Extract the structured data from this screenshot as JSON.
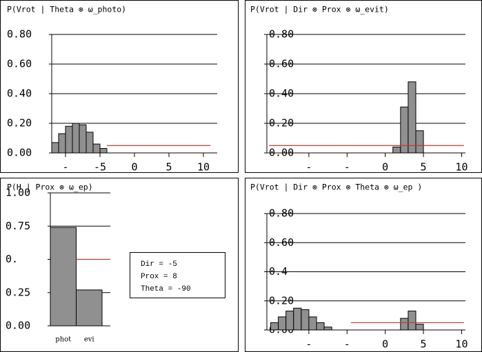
{
  "chart_data": [
    {
      "type": "histogram",
      "title": "P(Vrot | Theta ⊗ ω_photo)",
      "bins": [
        -12,
        -11,
        -10,
        -9,
        -8,
        -7,
        -6,
        -5,
        -4
      ],
      "values": [
        0.07,
        0.13,
        0.18,
        0.2,
        0.19,
        0.14,
        0.06,
        0.03
      ],
      "color": "#909090",
      "xlim": [
        -12,
        12
      ],
      "xticks": [
        {
          "value": -10,
          "label": "-"
        },
        -5,
        0,
        5,
        10
      ],
      "ylim": [
        0,
        0.8
      ],
      "yticks": [
        {
          "value": 0,
          "label": "0.00"
        },
        {
          "value": 0.2,
          "label": "0.20"
        },
        {
          "value": 0.4,
          "label": "0.40"
        },
        {
          "value": 0.6,
          "label": "0.60"
        },
        {
          "value": 0.8,
          "label": "0.80"
        }
      ],
      "grid": true,
      "ref_line": {
        "value": 0.05,
        "x": [
          -4,
          11
        ],
        "color": "#c0392b"
      }
    },
    {
      "type": "histogram",
      "title": "P(Vrot | Dir ⊗ Prox ⊗ ω_evit)",
      "bins": [
        1,
        2,
        3,
        4,
        5
      ],
      "values": [
        0.04,
        0.31,
        0.48,
        0.15
      ],
      "color": "#909090",
      "xlim": [
        -15.5,
        10.5
      ],
      "xticks": [
        {
          "value": -10,
          "label": "-"
        },
        {
          "value": -5,
          "label": "-"
        },
        0,
        5,
        10
      ],
      "ylim": [
        0,
        0.8
      ],
      "yticks": [
        {
          "value": 0,
          "label": "0.00"
        },
        {
          "value": 0.2,
          "label": "0.20"
        },
        {
          "value": 0.4,
          "label": "0.40"
        },
        {
          "value": 0.6,
          "label": "0.60"
        },
        {
          "value": 0.8,
          "label": "0.80"
        }
      ],
      "grid": true,
      "ref_line": {
        "value": 0.05,
        "x": [
          -15.2,
          10.3
        ],
        "color": "#c0392b"
      }
    },
    {
      "type": "bar",
      "title": "P(H | Prox ⊗ ω_ep)",
      "categories": [
        "phot",
        "evi"
      ],
      "values": [
        0.74,
        0.27
      ],
      "color": "#909090",
      "ylim": [
        0,
        1
      ],
      "yticks": [
        {
          "value": 0,
          "label": "0.00"
        },
        {
          "value": 0.25,
          "label": "0.25"
        },
        {
          "value": 0.5,
          "label": "0."
        },
        {
          "value": 0.75,
          "label": "0.75"
        },
        {
          "value": 1,
          "label": "1.00"
        }
      ],
      "grid": true,
      "ref_line": {
        "value": 0.5,
        "color": "#c0392b"
      },
      "annotations": [
        "Dir = -5",
        "Prox = 8",
        "Theta = -90"
      ]
    },
    {
      "type": "histogram",
      "title": "P(Vrot | Dir ⊗ Prox ⊗ Theta ⊗ ω_ep )",
      "bins": [
        -15,
        -14,
        -13,
        -12,
        -11,
        -10,
        -9,
        -8,
        -7,
        -6,
        -5,
        -4,
        -3,
        -2,
        -1,
        0,
        1,
        2,
        3,
        4,
        5
      ],
      "values": [
        0.05,
        0.09,
        0.13,
        0.15,
        0.14,
        0.09,
        0.05,
        0.02,
        0,
        0,
        0,
        0,
        0,
        0,
        0,
        0,
        0,
        0.08,
        0.13,
        0.04
      ],
      "color": "#909090",
      "xlim": [
        -15.5,
        10.5
      ],
      "xticks": [
        {
          "value": -10,
          "label": "-"
        },
        {
          "value": -5,
          "label": "-"
        },
        0,
        5,
        10
      ],
      "ylim": [
        0,
        0.8
      ],
      "yticks": [
        {
          "value": 0,
          "label": "0.00"
        },
        {
          "value": 0.2,
          "label": "0.20"
        },
        {
          "value": 0.4,
          "label": "0.4"
        },
        {
          "value": 0.6,
          "label": "0.60"
        },
        {
          "value": 0.8,
          "label": "0.80"
        }
      ],
      "grid": true,
      "ref_line": {
        "value": 0.05,
        "x": [
          -4.5,
          10.3
        ],
        "color": "#c0392b"
      }
    }
  ]
}
